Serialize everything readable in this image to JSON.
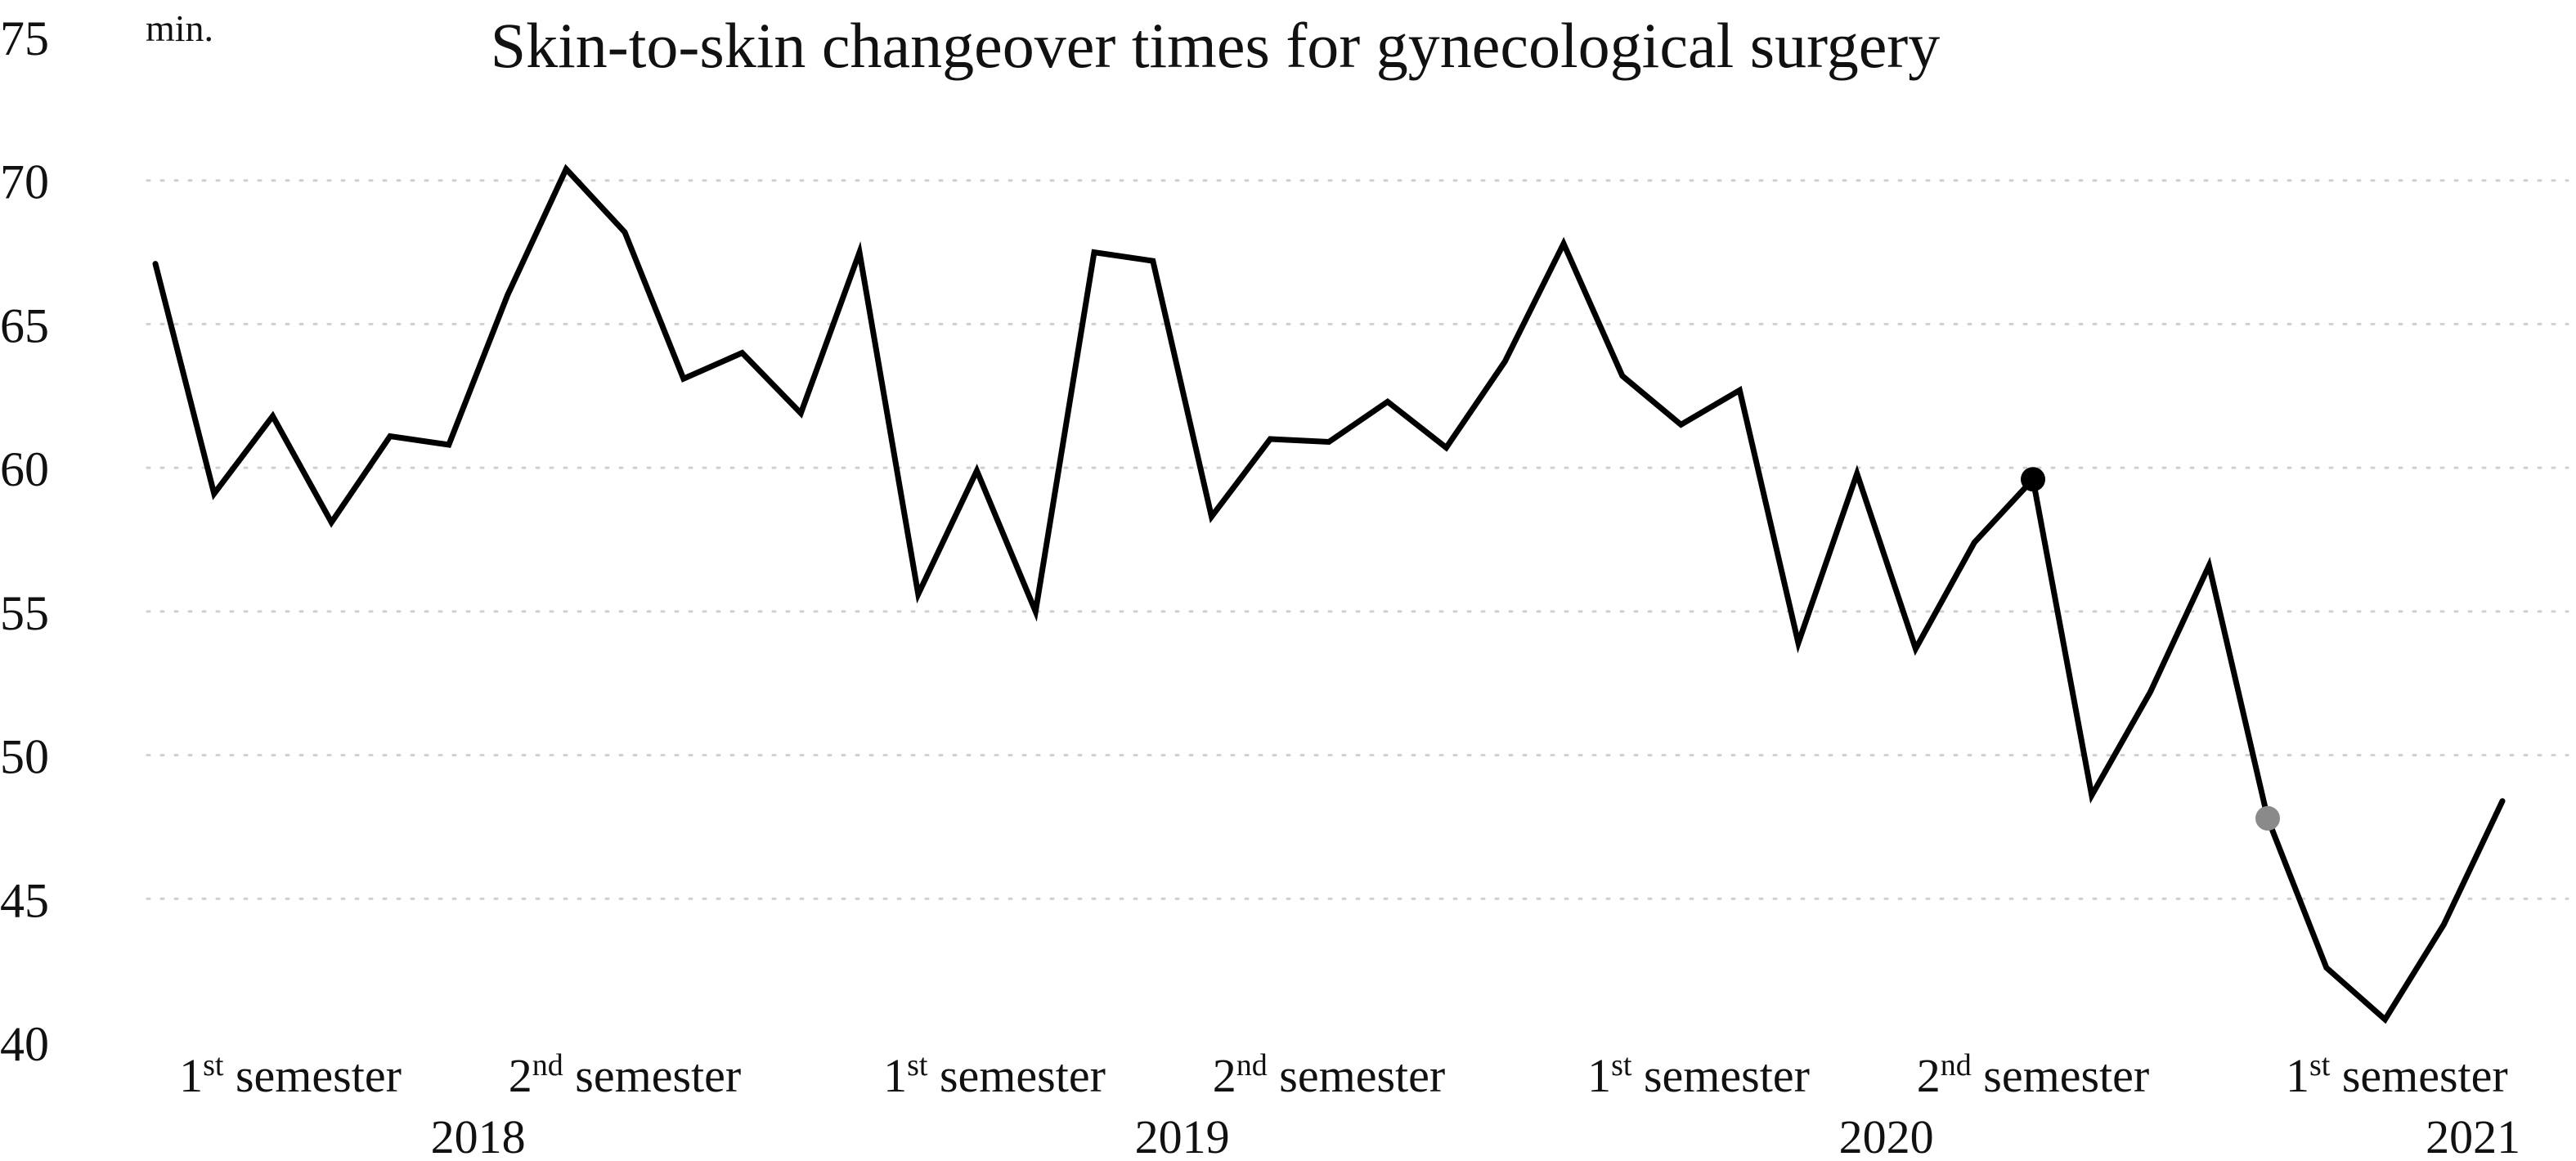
{
  "chart_data": {
    "type": "line",
    "title": "Skin-to-skin changeover times for gynecological surgery",
    "ylabel": "min.",
    "xlabel": "",
    "ylim": [
      40,
      75
    ],
    "yticks": [
      40,
      45,
      50,
      55,
      60,
      65,
      70,
      75
    ],
    "grid": true,
    "legend": "none",
    "semester_labels": [
      {
        "ordinal": "1",
        "suffix": "st",
        "word": " semester",
        "center_index": 2.3
      },
      {
        "ordinal": "2",
        "suffix": "nd",
        "word": " semester",
        "center_index": 8.0
      },
      {
        "ordinal": "1",
        "suffix": "st",
        "word": " semester",
        "center_index": 14.3
      },
      {
        "ordinal": "2",
        "suffix": "nd",
        "word": " semester",
        "center_index": 20.0
      },
      {
        "ordinal": "1",
        "suffix": "st",
        "word": " semester",
        "center_index": 26.3
      },
      {
        "ordinal": "2",
        "suffix": "nd",
        "word": " semester",
        "center_index": 32.0
      },
      {
        "ordinal": "1",
        "suffix": "st",
        "word": " semester",
        "center_index": 38.2
      }
    ],
    "year_labels": [
      {
        "label": "2018",
        "center_index": 5.5
      },
      {
        "label": "2019",
        "center_index": 17.5
      },
      {
        "label": "2020",
        "center_index": 29.5
      },
      {
        "label": "2021",
        "center_index": 39.5
      }
    ],
    "series": [
      {
        "color": "#000000",
        "values": [
          67.1,
          59.1,
          61.8,
          58.1,
          61.1,
          60.8,
          66.0,
          70.4,
          68.2,
          63.1,
          64.0,
          61.9,
          67.5,
          55.6,
          59.9,
          55.0,
          67.5,
          67.2,
          58.3,
          61.0,
          60.9,
          62.3,
          60.7,
          63.7,
          67.8,
          63.2,
          61.5,
          62.7,
          53.9,
          59.8,
          53.7,
          57.4,
          59.6,
          48.6,
          52.2,
          56.6,
          47.8,
          42.6,
          40.8,
          44.1,
          48.4
        ]
      }
    ],
    "markers": [
      {
        "index": 32,
        "value": 59.6,
        "color": "#000000"
      },
      {
        "index": 36,
        "value": 47.8,
        "color": "#8a8a8a"
      }
    ]
  }
}
